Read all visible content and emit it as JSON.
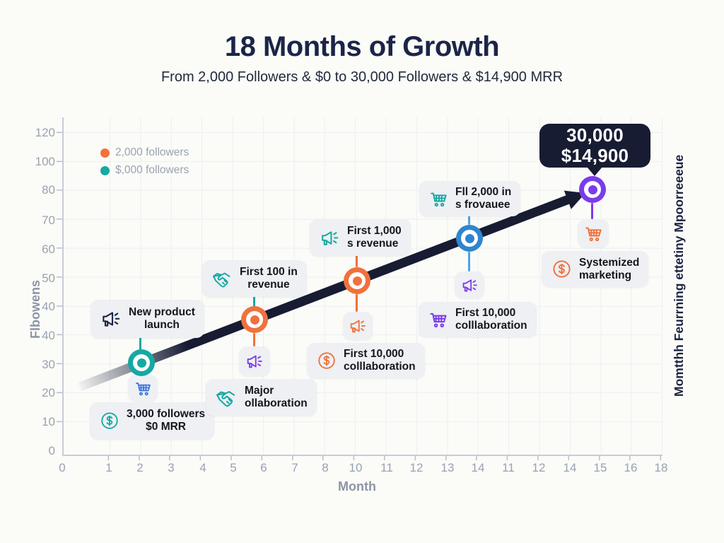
{
  "header": {
    "title": "18 Months of Growth",
    "subtitle": "From 2,000 Followers & $0 to 30,000 Followers & $14,900 MRR"
  },
  "legend": {
    "items": [
      {
        "label": "2,000 followers",
        "color": "#f1713c"
      },
      {
        "label": "$,000 followers",
        "color": "#15a9a3"
      }
    ]
  },
  "axes": {
    "x_label": "Month",
    "y_label": "Flbowens",
    "x_ticks": [
      "0",
      "1",
      "2",
      "3",
      "4",
      "5",
      "6",
      "7",
      "8",
      "10",
      "11",
      "12",
      "13",
      "14",
      "11",
      "12",
      "14",
      "15",
      "16",
      "18"
    ],
    "y_ticks": [
      "120",
      "100",
      "80",
      "70",
      "60",
      "50",
      "40",
      "40",
      "30",
      "20",
      "10",
      "0"
    ]
  },
  "right_axis_label": "Momtthh Feurrning ettetiny Mpoorreeeue",
  "badge": {
    "line1": "30,000",
    "line2": "$14,900"
  },
  "milestones": [
    {
      "marker_color": "#15a9a3",
      "top": {
        "icon": "megaphone",
        "line1": "New product",
        "line2": "launch"
      },
      "mid_icon": "cart",
      "bottom": {
        "icon": "dollar-circle",
        "line1": "3,000 followers",
        "line2": "$0 MRR"
      }
    },
    {
      "marker_color": "#f1713c",
      "top": {
        "icon": "handshake",
        "line1": "First 100 in",
        "line2": "revenue"
      },
      "mid_icon": "megaphone",
      "bottom": {
        "icon": "handshake",
        "line1": "Major",
        "line2": "ollaboration"
      }
    },
    {
      "marker_color": "#f1713c",
      "top": {
        "icon": "megaphone",
        "line1": "First 1,000",
        "line2": "s revenue"
      },
      "mid_icon": "megaphone",
      "bottom": {
        "icon": "dollar-circle",
        "line1": "First 10,000",
        "line2": "colllaboration"
      }
    },
    {
      "marker_color": "#2e86cf",
      "top": {
        "icon": "cart",
        "line1": "Fll 2,000 in",
        "line2": "s frovauee"
      },
      "mid_icon": "megaphone",
      "bottom": {
        "icon": "cart",
        "line1": "First 10,000",
        "line2": "colllaboration"
      }
    },
    {
      "marker_color": "#7b3bec",
      "mid_icon": "cart",
      "bottom": {
        "icon": "dollar-circle",
        "line1": "Systemized",
        "line2": "marketing"
      }
    }
  ],
  "colors": {
    "navy": "#171c33",
    "title_navy": "#1b2547",
    "orange": "#f1713c",
    "teal": "#15a9a3",
    "blue": "#2e86cf",
    "purple": "#7b3bec",
    "cart_blue": "#3b77e0",
    "box_bg": "#eef0f3",
    "axis_text": "#99a2b0",
    "background": "#fbfbf8"
  },
  "chart_data": {
    "type": "line",
    "title": "18 Months of Growth",
    "subtitle": "From 2,000 Followers & $0 to 30,000 Followers & $14,900 MRR",
    "xlabel": "Month",
    "ylabel": "Flbowens",
    "right_label": "Momtthh Feurrning ettetiny Mpoorreeeue",
    "x_tick_labels": [
      "0",
      "1",
      "2",
      "3",
      "4",
      "5",
      "6",
      "7",
      "8",
      "10",
      "11",
      "12",
      "13",
      "14",
      "11",
      "12",
      "14",
      "15",
      "16",
      "18"
    ],
    "y_tick_labels": [
      "120",
      "100",
      "80",
      "70",
      "60",
      "50",
      "40",
      "40",
      "30",
      "20",
      "10",
      "0"
    ],
    "xlim": [
      0,
      18.5
    ],
    "ylim": [
      0,
      120
    ],
    "grid": true,
    "legend_position": "upper left",
    "legend_entries": [
      "2,000 followers",
      "$,000 followers"
    ],
    "series": [
      {
        "name": "Growth trajectory (arrow line)",
        "x": [
          0.6,
          2.5,
          6.1,
          9.3,
          12.9,
          16.6
        ],
        "y": [
          22,
          30,
          45,
          59,
          73,
          90
        ]
      }
    ],
    "points": [
      {
        "x": 2.5,
        "y": 30,
        "color": "#15a9a3",
        "label_above": "New product launch",
        "label_below": "3,000 followers $0 MRR"
      },
      {
        "x": 6.1,
        "y": 45,
        "color": "#f1713c",
        "label_above": "First 100 in revenue",
        "label_below": "Major ollaboration"
      },
      {
        "x": 9.3,
        "y": 59,
        "color": "#f1713c",
        "label_above": "First 1,000 s revenue",
        "label_below": "First 10,000 colllaboration"
      },
      {
        "x": 12.9,
        "y": 73,
        "color": "#2e86cf",
        "label_above": "Fll 2,000 in s frovauee",
        "label_below": "First 10,000 colllaboration"
      },
      {
        "x": 16.6,
        "y": 90,
        "color": "#7b3bec",
        "label_above": "30,000 $14,900",
        "label_below": "Systemized marketing"
      }
    ],
    "annotation": {
      "text_line1": "30,000",
      "text_line2": "$14,900",
      "x": 16.6,
      "y": 104,
      "style": "dark speech bubble"
    }
  }
}
